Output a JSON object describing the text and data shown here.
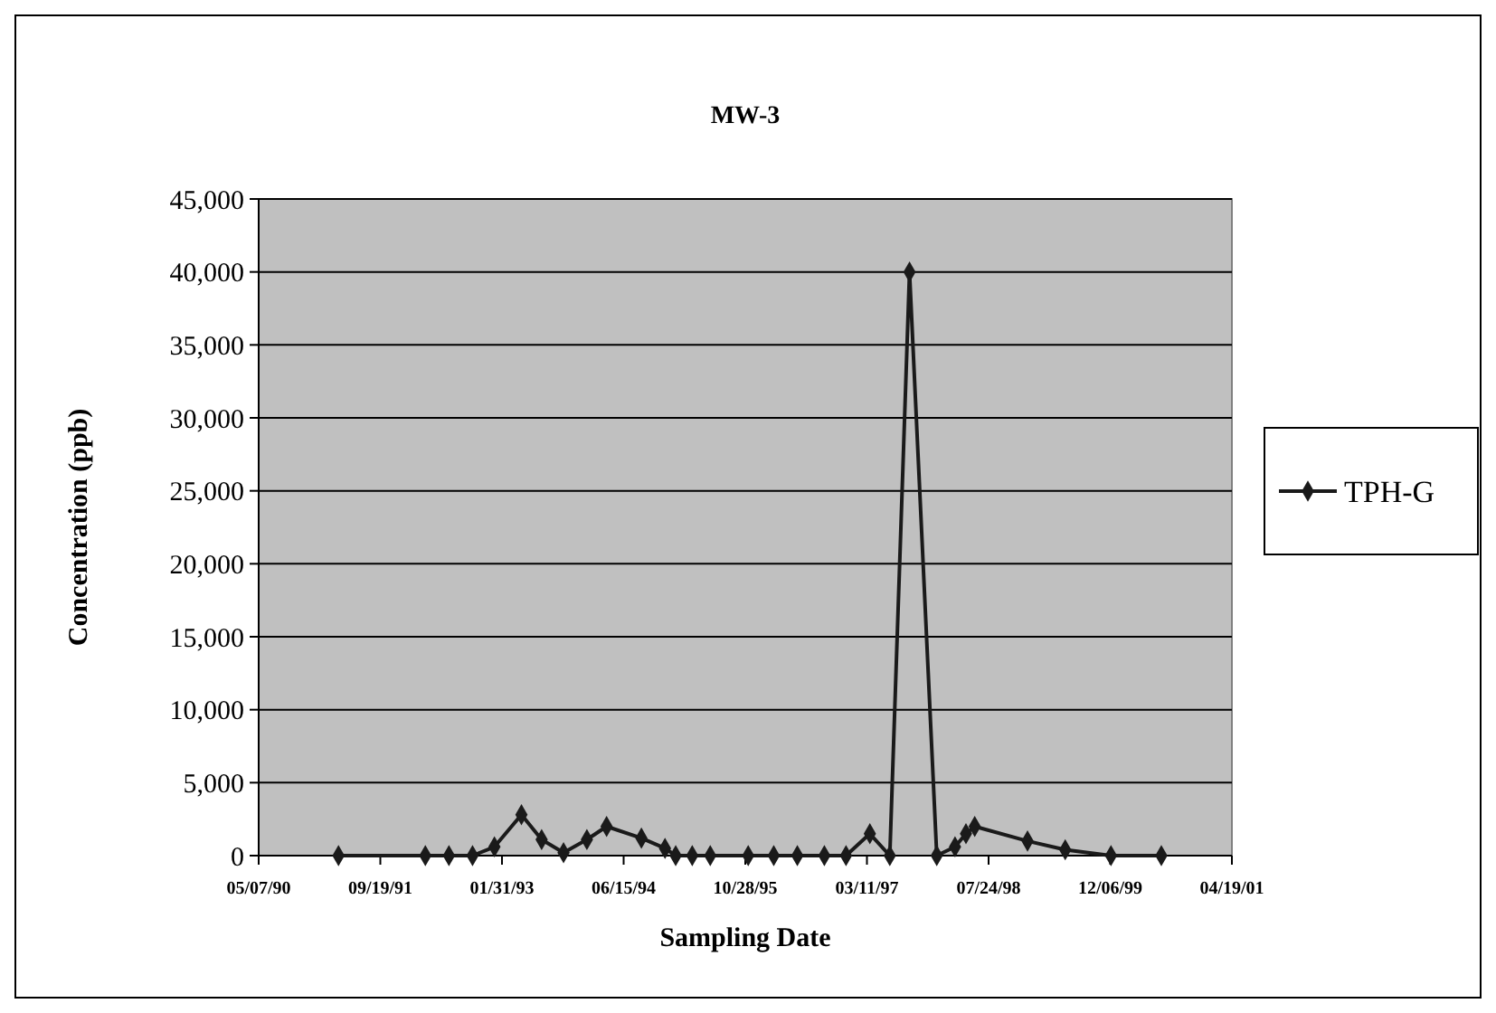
{
  "chart_data": {
    "type": "line",
    "title": "MW-3",
    "xlabel": "Sampling Date",
    "ylabel": "Concentration (ppb)",
    "x": [
      "1991-03-31",
      "1992-03-22",
      "1992-06-27",
      "1992-10-02",
      "1992-12-31",
      "1993-04-21",
      "1993-07-13",
      "1993-10-11",
      "1994-01-15",
      "1994-04-06",
      "1994-08-27",
      "1994-12-02",
      "1995-01-15",
      "1995-03-24",
      "1995-06-06",
      "1995-11-09",
      "1996-02-22",
      "1996-05-29",
      "1996-09-17",
      "1996-12-15",
      "1997-03-23",
      "1997-06-13",
      "1997-09-02",
      "1997-12-23",
      "1998-03-08",
      "1998-04-22",
      "1998-05-28",
      "1998-12-31",
      "1999-06-04",
      "1999-12-09",
      "2000-07-03"
    ],
    "series": [
      {
        "name": "TPH-G",
        "color": "#1a1a1a",
        "values": [
          0,
          0,
          0,
          0,
          600,
          2800,
          1100,
          200,
          1100,
          2000,
          1200,
          500,
          0,
          0,
          0,
          0,
          0,
          0,
          0,
          0,
          1500,
          0,
          40000,
          0,
          600,
          1500,
          2000,
          1000,
          400,
          0,
          0
        ]
      }
    ],
    "xlim": [
      "1990-05-07",
      "2001-04-19"
    ],
    "xticks": [
      {
        "value": "1990-05-07",
        "label": "05/07/90"
      },
      {
        "value": "1991-09-19",
        "label": "09/19/91"
      },
      {
        "value": "1993-01-31",
        "label": "01/31/93"
      },
      {
        "value": "1994-06-15",
        "label": "06/15/94"
      },
      {
        "value": "1995-10-28",
        "label": "10/28/95"
      },
      {
        "value": "1997-03-11",
        "label": "03/11/97"
      },
      {
        "value": "1998-07-24",
        "label": "07/24/98"
      },
      {
        "value": "1999-12-06",
        "label": "12/06/99"
      },
      {
        "value": "2001-04-19",
        "label": "04/19/01"
      }
    ],
    "ylim": [
      0,
      45000
    ],
    "yticks": [
      {
        "value": 0,
        "label": "0"
      },
      {
        "value": 5000,
        "label": "5,000"
      },
      {
        "value": 10000,
        "label": "10,000"
      },
      {
        "value": 15000,
        "label": "15,000"
      },
      {
        "value": 20000,
        "label": "20,000"
      },
      {
        "value": 25000,
        "label": "25,000"
      },
      {
        "value": 30000,
        "label": "30,000"
      },
      {
        "value": 35000,
        "label": "35,000"
      },
      {
        "value": 40000,
        "label": "40,000"
      },
      {
        "value": 45000,
        "label": "45,000"
      }
    ],
    "grid": "y",
    "legend": "right",
    "marker": "diamond",
    "line_style": "solid"
  }
}
